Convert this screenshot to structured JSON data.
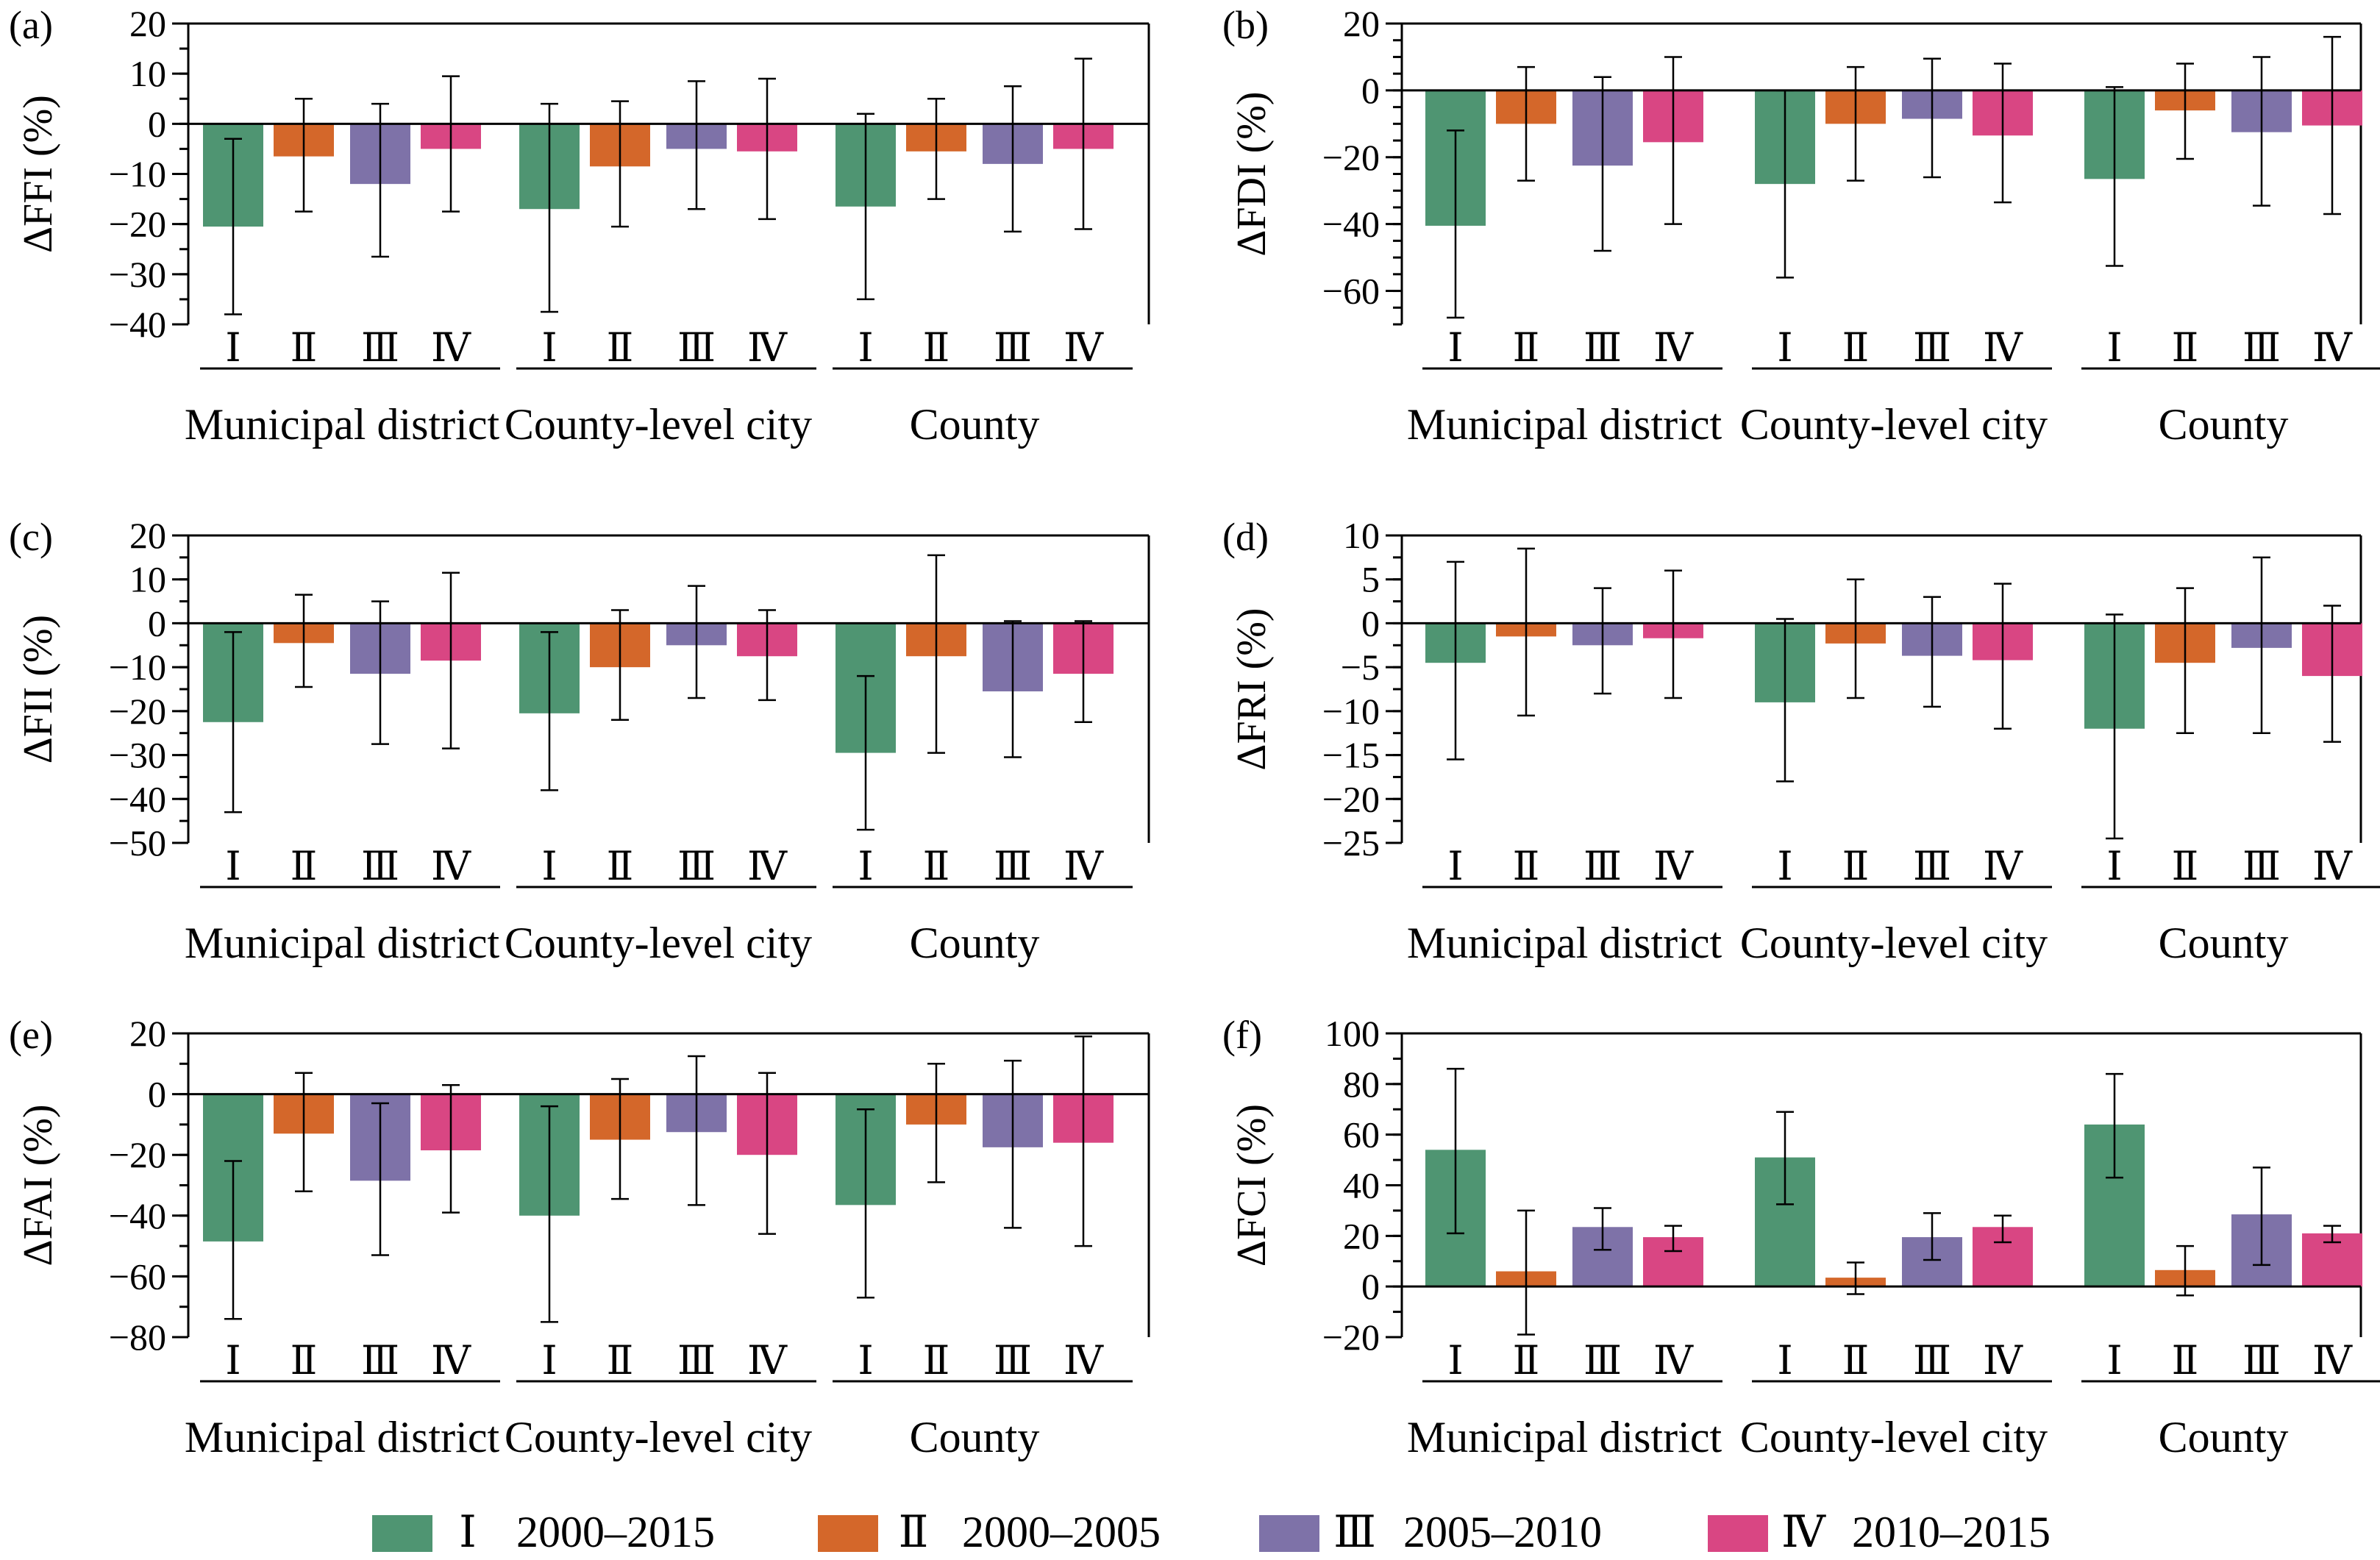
{
  "colors": {
    "I": "#4f9572",
    "II": "#d4672a",
    "III": "#7e72a8",
    "IV": "#d94683",
    "axis": "#000000"
  },
  "legend": [
    {
      "key": "I",
      "roman": "Ⅰ",
      "label": "2000–2015"
    },
    {
      "key": "II",
      "roman": "Ⅱ",
      "label": "2000–2005"
    },
    {
      "key": "III",
      "roman": "Ⅲ",
      "label": "2005–2010"
    },
    {
      "key": "IV",
      "roman": "Ⅳ",
      "label": "2010–2015"
    }
  ],
  "chart_data": [
    {
      "panel": "(a)",
      "type": "bar",
      "ylabel": "ΔFFI (%)",
      "ylim": [
        -40,
        20
      ],
      "yticks": [
        20,
        10,
        0,
        -10,
        -20,
        -30,
        -40
      ],
      "minor_step": 5,
      "groups": [
        "Municipal district",
        "County-level city",
        "County"
      ],
      "categories": [
        "Ⅰ",
        "Ⅱ",
        "Ⅲ",
        "Ⅳ"
      ],
      "series": [
        {
          "group": "Municipal district",
          "values": [
            -20.5,
            -6.5,
            -12,
            -5
          ],
          "errors": [
            [
              -38,
              -3
            ],
            [
              -17.5,
              5
            ],
            [
              -26.5,
              4
            ],
            [
              -17.5,
              9.5
            ]
          ]
        },
        {
          "group": "County-level city",
          "values": [
            -17,
            -8.5,
            -5,
            -5.5
          ],
          "errors": [
            [
              -37.5,
              4
            ],
            [
              -20.5,
              4.5
            ],
            [
              -17,
              8.5
            ],
            [
              -19,
              9
            ]
          ]
        },
        {
          "group": "County",
          "values": [
            -16.5,
            -5.5,
            -8,
            -5
          ],
          "errors": [
            [
              -35,
              2
            ],
            [
              -15,
              5
            ],
            [
              -21.5,
              7.5
            ],
            [
              -21,
              13
            ]
          ]
        }
      ]
    },
    {
      "panel": "(b)",
      "type": "bar",
      "ylabel": "ΔFDI (%)",
      "ylim": [
        -70,
        20
      ],
      "yticks": [
        20,
        0,
        -20,
        -40,
        -60
      ],
      "minor_step": 5,
      "groups": [
        "Municipal district",
        "County-level city",
        "County"
      ],
      "categories": [
        "Ⅰ",
        "Ⅱ",
        "Ⅲ",
        "Ⅳ"
      ],
      "series": [
        {
          "group": "Municipal district",
          "values": [
            -40.5,
            -10,
            -22.5,
            -15.5
          ],
          "errors": [
            [
              -68,
              -12
            ],
            [
              -27,
              7
            ],
            [
              -48,
              4
            ],
            [
              -40,
              10
            ]
          ]
        },
        {
          "group": "County-level city",
          "values": [
            -28,
            -10,
            -8.5,
            -13.5
          ],
          "errors": [
            [
              -56,
              0
            ],
            [
              -27,
              7
            ],
            [
              -26,
              9.5
            ],
            [
              -33.5,
              8
            ]
          ]
        },
        {
          "group": "County",
          "values": [
            -26.5,
            -6,
            -12.5,
            -10.5
          ],
          "errors": [
            [
              -52.5,
              1
            ],
            [
              -20.5,
              8
            ],
            [
              -34.5,
              10
            ],
            [
              -37,
              16
            ]
          ]
        }
      ]
    },
    {
      "panel": "(c)",
      "type": "bar",
      "ylabel": "ΔFII (%)",
      "ylim": [
        -50,
        20
      ],
      "yticks": [
        20,
        10,
        0,
        -10,
        -20,
        -30,
        -40,
        -50
      ],
      "minor_step": 5,
      "groups": [
        "Municipal district",
        "County-level city",
        "County"
      ],
      "categories": [
        "Ⅰ",
        "Ⅱ",
        "Ⅲ",
        "Ⅳ"
      ],
      "series": [
        {
          "group": "Municipal district",
          "values": [
            -22.5,
            -4.5,
            -11.5,
            -8.5
          ],
          "errors": [
            [
              -43,
              -2
            ],
            [
              -14.5,
              6.5
            ],
            [
              -27.5,
              5
            ],
            [
              -28.5,
              11.5
            ]
          ]
        },
        {
          "group": "County-level city",
          "values": [
            -20.5,
            -10,
            -5,
            -7.5
          ],
          "errors": [
            [
              -38,
              -2
            ],
            [
              -22,
              3
            ],
            [
              -17,
              8.5
            ],
            [
              -17.5,
              3
            ]
          ]
        },
        {
          "group": "County",
          "values": [
            -29.5,
            -7.5,
            -15.5,
            -11.5
          ],
          "errors": [
            [
              -47,
              -12
            ],
            [
              -29.5,
              15.5
            ],
            [
              -30.5,
              0.5
            ],
            [
              -22.5,
              0.5
            ]
          ]
        }
      ]
    },
    {
      "panel": "(d)",
      "type": "bar",
      "ylabel": "ΔFRI (%)",
      "ylim": [
        -25,
        10
      ],
      "yticks": [
        10,
        5,
        0,
        -5,
        -10,
        -15,
        -20,
        -25
      ],
      "minor_step": 2.5,
      "groups": [
        "Municipal district",
        "County-level city",
        "County"
      ],
      "categories": [
        "Ⅰ",
        "Ⅱ",
        "Ⅲ",
        "Ⅳ"
      ],
      "series": [
        {
          "group": "Municipal district",
          "values": [
            -4.5,
            -1.5,
            -2.5,
            -1.7
          ],
          "errors": [
            [
              -15.5,
              7
            ],
            [
              -10.5,
              8.5
            ],
            [
              -8,
              4
            ],
            [
              -8.5,
              6
            ]
          ]
        },
        {
          "group": "County-level city",
          "values": [
            -9,
            -2.3,
            -3.7,
            -4.2
          ],
          "errors": [
            [
              -18,
              0.5
            ],
            [
              -8.5,
              5
            ],
            [
              -9.5,
              3
            ],
            [
              -12,
              4.5
            ]
          ]
        },
        {
          "group": "County",
          "values": [
            -12,
            -4.5,
            -2.8,
            -6
          ],
          "errors": [
            [
              -24.5,
              1
            ],
            [
              -12.5,
              4
            ],
            [
              -12.5,
              7.5
            ],
            [
              -13.5,
              2
            ]
          ]
        }
      ]
    },
    {
      "panel": "(e)",
      "type": "bar",
      "ylabel": "ΔFAI (%)",
      "ylim": [
        -80,
        20
      ],
      "yticks": [
        20,
        0,
        -20,
        -40,
        -60,
        -80
      ],
      "minor_step": 10,
      "groups": [
        "Municipal district",
        "County-level city",
        "County"
      ],
      "categories": [
        "Ⅰ",
        "Ⅱ",
        "Ⅲ",
        "Ⅳ"
      ],
      "series": [
        {
          "group": "Municipal district",
          "values": [
            -48.5,
            -13,
            -28.5,
            -18.5
          ],
          "errors": [
            [
              -74,
              -22
            ],
            [
              -32,
              7
            ],
            [
              -53,
              -3
            ],
            [
              -39,
              3
            ]
          ]
        },
        {
          "group": "County-level city",
          "values": [
            -40,
            -15,
            -12.5,
            -20
          ],
          "errors": [
            [
              -75,
              -4
            ],
            [
              -34.5,
              5
            ],
            [
              -36.5,
              12.5
            ],
            [
              -46,
              7
            ]
          ]
        },
        {
          "group": "County",
          "values": [
            -36.5,
            -10,
            -17.5,
            -16
          ],
          "errors": [
            [
              -67,
              -5
            ],
            [
              -29,
              10
            ],
            [
              -44,
              11
            ],
            [
              -50,
              19
            ]
          ]
        }
      ]
    },
    {
      "panel": "(f)",
      "type": "bar",
      "ylabel": "ΔFCI (%)",
      "ylim": [
        -20,
        100
      ],
      "yticks": [
        100,
        80,
        60,
        40,
        20,
        0,
        -20
      ],
      "minor_step": 10,
      "groups": [
        "Municipal district",
        "County-level city",
        "County"
      ],
      "categories": [
        "Ⅰ",
        "Ⅱ",
        "Ⅲ",
        "Ⅳ"
      ],
      "series": [
        {
          "group": "Municipal district",
          "values": [
            54,
            6,
            23.5,
            19.5
          ],
          "errors": [
            [
              21,
              86
            ],
            [
              -19,
              30
            ],
            [
              14.5,
              31
            ],
            [
              14,
              24
            ]
          ]
        },
        {
          "group": "County-level city",
          "values": [
            51,
            3.5,
            19.5,
            23.5
          ],
          "errors": [
            [
              32.5,
              69
            ],
            [
              -3,
              9.5
            ],
            [
              10.5,
              29
            ],
            [
              17.5,
              28
            ]
          ]
        },
        {
          "group": "County",
          "values": [
            64,
            6.5,
            28.5,
            21
          ],
          "errors": [
            [
              43,
              84
            ],
            [
              -3.5,
              16
            ],
            [
              8.5,
              47
            ],
            [
              17.5,
              24
            ]
          ]
        }
      ]
    }
  ]
}
